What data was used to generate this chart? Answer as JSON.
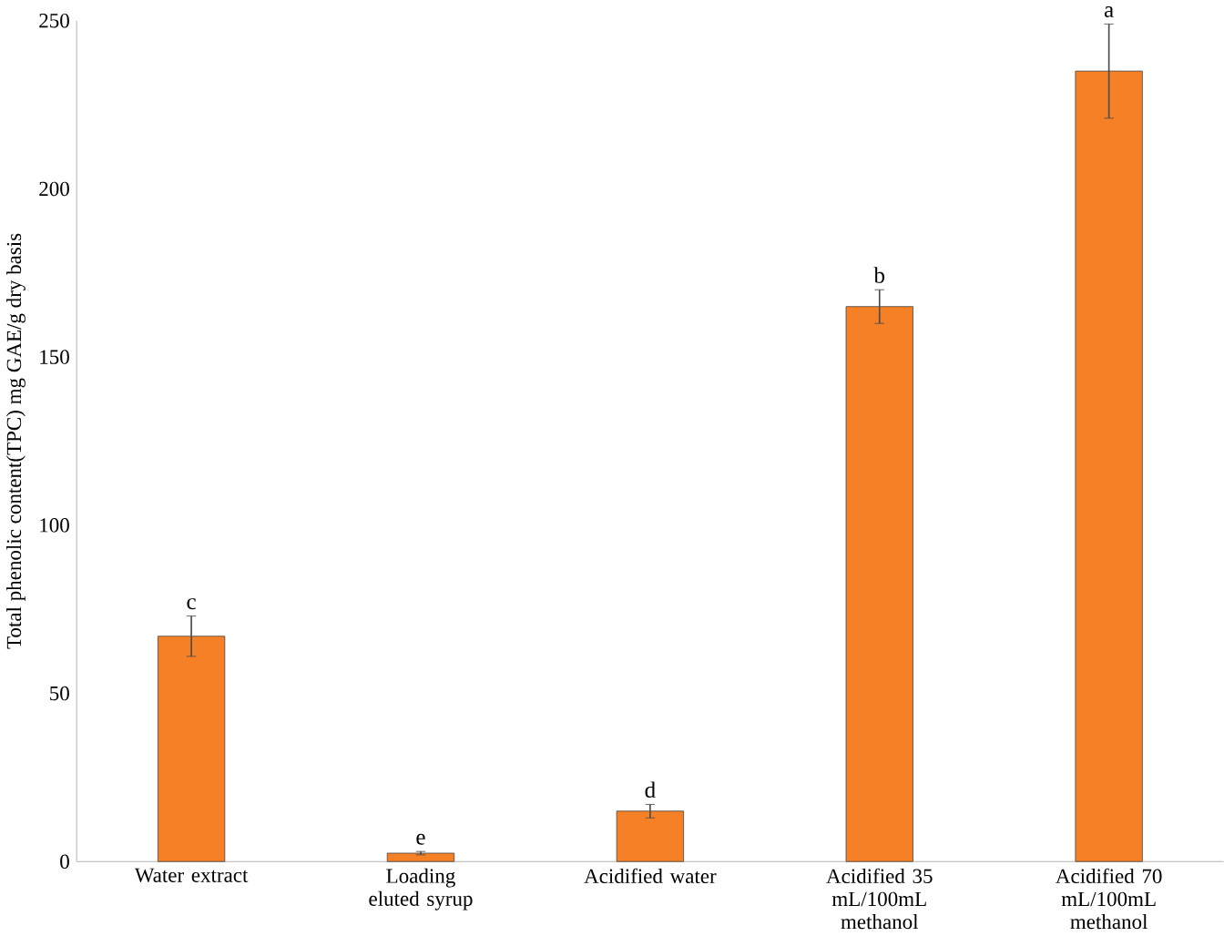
{
  "chart_data": {
    "type": "bar",
    "ylabel": "Total phenolic content(TPC) mg GAE/g dry basis",
    "categories": [
      "Water extract",
      "Loading eluted syrup",
      "Acidified water",
      "Acidified 35 mL/100mL methanol",
      "Acidified 70 mL/100mL methanol"
    ],
    "values": [
      67,
      2.5,
      15,
      165,
      235
    ],
    "errors": [
      6,
      0.5,
      2,
      5,
      14
    ],
    "color": "#f58025",
    "ylim": [
      0,
      250
    ],
    "yticks": [
      0,
      50,
      100,
      150,
      200,
      250
    ],
    "annotations": [
      {
        "text": "c",
        "x": "Water extract",
        "y": 73
      },
      {
        "text": "e",
        "x": "Loading eluted syrup",
        "y": 3
      },
      {
        "text": "d",
        "x": "Acidified water",
        "y": 17
      },
      {
        "text": "b",
        "x": "Acidified 35 mL/100mL methanol",
        "y": 170
      },
      {
        "text": "a",
        "x": "Acidified 70 mL/100mL methanol",
        "y": 249
      }
    ],
    "grid": false
  }
}
